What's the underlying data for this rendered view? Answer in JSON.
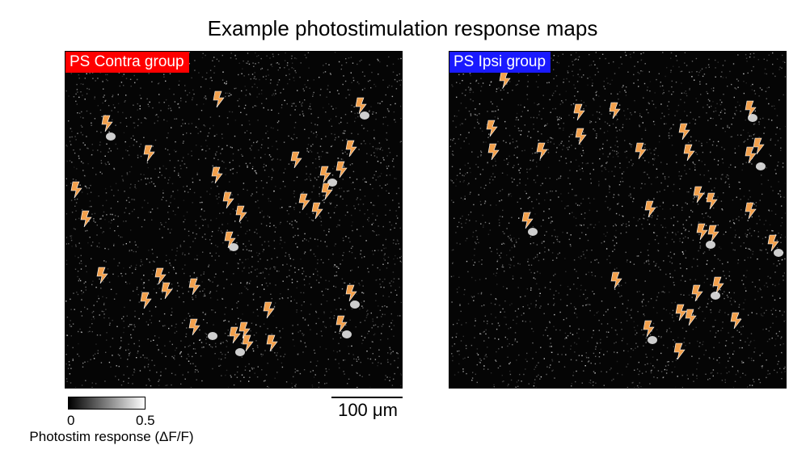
{
  "figure": {
    "title": "Example photostimulation response maps"
  },
  "panels": [
    {
      "label": "PS Contra group",
      "label_color": "#ff0000",
      "marker_color": "#f2a04c",
      "markers": [
        [
          270,
          122
        ],
        [
          446,
          130
        ],
        [
          132,
          152
        ],
        [
          184,
          189
        ],
        [
          366,
          197
        ],
        [
          434,
          183
        ],
        [
          402,
          215
        ],
        [
          422,
          209
        ],
        [
          268,
          216
        ],
        [
          94,
          234
        ],
        [
          376,
          249
        ],
        [
          392,
          260
        ],
        [
          404,
          236
        ],
        [
          282,
          247
        ],
        [
          298,
          264
        ],
        [
          106,
          270
        ],
        [
          284,
          296
        ],
        [
          126,
          340
        ],
        [
          198,
          341
        ],
        [
          240,
          354
        ],
        [
          206,
          359
        ],
        [
          180,
          371
        ],
        [
          434,
          362
        ],
        [
          332,
          383
        ],
        [
          240,
          404
        ],
        [
          302,
          408
        ],
        [
          290,
          414
        ],
        [
          306,
          424
        ],
        [
          422,
          400
        ],
        [
          336,
          424
        ]
      ],
      "bright_spots": [
        [
          450,
          142
        ],
        [
          136,
          168
        ],
        [
          410,
          225
        ],
        [
          262,
          415
        ],
        [
          296,
          435
        ],
        [
          438,
          376
        ],
        [
          428,
          413
        ],
        [
          288,
          305
        ]
      ]
    },
    {
      "label": "PS Ipsi group",
      "label_color": "#1a1aff",
      "marker_color": "#f2a04c",
      "markers": [
        [
          624,
          98
        ],
        [
          716,
          138
        ],
        [
          760,
          136
        ],
        [
          608,
          158
        ],
        [
          718,
          168
        ],
        [
          610,
          187
        ],
        [
          670,
          186
        ],
        [
          846,
          162
        ],
        [
          792,
          186
        ],
        [
          852,
          188
        ],
        [
          928,
          134
        ],
        [
          938,
          180
        ],
        [
          928,
          191
        ],
        [
          804,
          258
        ],
        [
          864,
          240
        ],
        [
          880,
          248
        ],
        [
          928,
          260
        ],
        [
          652,
          272
        ],
        [
          868,
          286
        ],
        [
          882,
          288
        ],
        [
          956,
          300
        ],
        [
          762,
          346
        ],
        [
          862,
          362
        ],
        [
          888,
          352
        ],
        [
          842,
          386
        ],
        [
          854,
          392
        ],
        [
          910,
          396
        ],
        [
          802,
          406
        ],
        [
          840,
          434
        ]
      ],
      "bright_spots": [
        [
          658,
          286
        ],
        [
          940,
          205
        ],
        [
          878,
          302
        ],
        [
          930,
          145
        ],
        [
          962,
          312
        ],
        [
          884,
          365
        ],
        [
          806,
          420
        ]
      ]
    }
  ],
  "colorbar": {
    "min_label": "0",
    "max_label": "0.5",
    "label": "Photostim response (ΔF/F)"
  },
  "scale_bar": {
    "label": "100 μm"
  }
}
